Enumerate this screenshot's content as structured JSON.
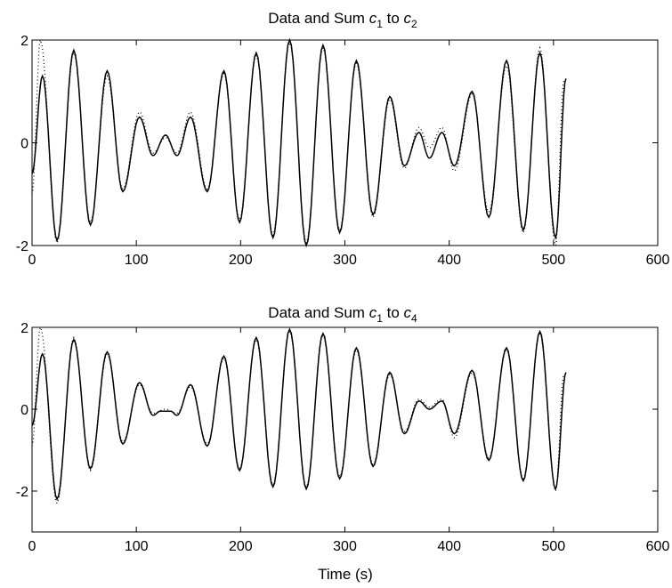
{
  "figure": {
    "xlabel": "Time (s)"
  },
  "chart_data": [
    {
      "type": "line",
      "title": {
        "prefix": "Data and Sum ",
        "c1": "c",
        "c1_sub": "1",
        "mid": " to ",
        "c2": "c",
        "c2_sub": "2"
      },
      "xlim": [
        0,
        600
      ],
      "ylim": [
        -2,
        2
      ],
      "x_ticks": [
        0,
        100,
        200,
        300,
        400,
        500,
        600
      ],
      "y_ticks": [
        -2,
        0,
        2
      ],
      "x_tick_labels": [
        "0",
        "100",
        "200",
        "300",
        "400",
        "500",
        "600"
      ],
      "y_tick_labels": [
        "-2",
        "0",
        "2"
      ],
      "grid": false,
      "series": [
        {
          "style": "solid",
          "color": "#000000",
          "extrema": [
            [
              0,
              -0.6
            ],
            [
              10,
              1.3
            ],
            [
              24,
              -1.9
            ],
            [
              40,
              1.8
            ],
            [
              56,
              -1.6
            ],
            [
              72,
              1.4
            ],
            [
              87,
              -0.95
            ],
            [
              103,
              0.5
            ],
            [
              116,
              -0.25
            ],
            [
              128,
              0.15
            ],
            [
              139,
              -0.25
            ],
            [
              152,
              0.5
            ],
            [
              168,
              -0.95
            ],
            [
              184,
              1.4
            ],
            [
              199,
              -1.55
            ],
            [
              215,
              1.75
            ],
            [
              231,
              -1.85
            ],
            [
              247,
              2.0
            ],
            [
              263,
              -2.0
            ],
            [
              279,
              1.9
            ],
            [
              295,
              -1.75
            ],
            [
              311,
              1.6
            ],
            [
              327,
              -1.4
            ],
            [
              343,
              0.9
            ],
            [
              357,
              -0.45
            ],
            [
              371,
              0.2
            ],
            [
              381,
              -0.3
            ],
            [
              393,
              0.2
            ],
            [
              405,
              -0.45
            ],
            [
              422,
              1.0
            ],
            [
              438,
              -1.45
            ],
            [
              455,
              1.6
            ],
            [
              471,
              -1.7
            ],
            [
              487,
              1.75
            ],
            [
              502,
              -1.85
            ],
            [
              512,
              1.25
            ]
          ]
        },
        {
          "style": "dotted",
          "color": "#000000",
          "extrema": [
            [
              0,
              -1.0
            ],
            [
              8,
              2.0
            ],
            [
              24,
              -1.95
            ],
            [
              40,
              1.75
            ],
            [
              56,
              -1.55
            ],
            [
              72,
              1.3
            ],
            [
              87,
              -0.9
            ],
            [
              103,
              0.6
            ],
            [
              116,
              -0.2
            ],
            [
              128,
              0.1
            ],
            [
              139,
              -0.2
            ],
            [
              152,
              0.6
            ],
            [
              168,
              -0.9
            ],
            [
              184,
              1.35
            ],
            [
              199,
              -1.5
            ],
            [
              215,
              1.7
            ],
            [
              231,
              -1.8
            ],
            [
              247,
              1.95
            ],
            [
              263,
              -1.95
            ],
            [
              279,
              1.85
            ],
            [
              295,
              -1.7
            ],
            [
              311,
              1.55
            ],
            [
              327,
              -1.45
            ],
            [
              343,
              0.85
            ],
            [
              357,
              -0.5
            ],
            [
              371,
              0.3
            ],
            [
              381,
              -0.1
            ],
            [
              393,
              0.3
            ],
            [
              405,
              -0.55
            ],
            [
              422,
              0.95
            ],
            [
              438,
              -1.35
            ],
            [
              455,
              1.5
            ],
            [
              471,
              -1.75
            ],
            [
              487,
              1.85
            ],
            [
              502,
              -2.0
            ],
            [
              510,
              1.2
            ]
          ]
        }
      ]
    },
    {
      "type": "line",
      "title": {
        "prefix": "Data and Sum ",
        "c1": "c",
        "c1_sub": "1",
        "mid": " to ",
        "c2": "c",
        "c2_sub": "4"
      },
      "xlim": [
        0,
        600
      ],
      "ylim": [
        -3,
        2
      ],
      "x_ticks": [
        0,
        100,
        200,
        300,
        400,
        500,
        600
      ],
      "y_ticks": [
        -2,
        0,
        2
      ],
      "x_tick_labels": [
        "0",
        "100",
        "200",
        "300",
        "400",
        "500",
        "600"
      ],
      "y_tick_labels": [
        "-2",
        "0",
        "2"
      ],
      "grid": false,
      "series": [
        {
          "style": "solid",
          "color": "#000000",
          "extrema": [
            [
              0,
              -0.4
            ],
            [
              10,
              1.35
            ],
            [
              24,
              -2.2
            ],
            [
              40,
              1.7
            ],
            [
              56,
              -1.45
            ],
            [
              72,
              1.4
            ],
            [
              87,
              -0.85
            ],
            [
              103,
              0.65
            ],
            [
              116,
              -0.15
            ],
            [
              123,
              -0.05
            ],
            [
              128,
              -0.05
            ],
            [
              133,
              -0.05
            ],
            [
              139,
              -0.15
            ],
            [
              152,
              0.6
            ],
            [
              168,
              -0.9
            ],
            [
              184,
              1.3
            ],
            [
              199,
              -1.5
            ],
            [
              215,
              1.75
            ],
            [
              231,
              -1.9
            ],
            [
              247,
              1.95
            ],
            [
              263,
              -1.95
            ],
            [
              279,
              1.85
            ],
            [
              295,
              -1.7
            ],
            [
              311,
              1.5
            ],
            [
              327,
              -1.4
            ],
            [
              343,
              0.9
            ],
            [
              357,
              -0.6
            ],
            [
              371,
              0.2
            ],
            [
              381,
              0.0
            ],
            [
              393,
              0.2
            ],
            [
              405,
              -0.6
            ],
            [
              422,
              0.95
            ],
            [
              438,
              -1.25
            ],
            [
              455,
              1.5
            ],
            [
              471,
              -1.75
            ],
            [
              487,
              1.9
            ],
            [
              502,
              -1.95
            ],
            [
              512,
              0.9
            ]
          ]
        },
        {
          "style": "dotted",
          "color": "#000000",
          "extrema": [
            [
              0,
              -0.9
            ],
            [
              8,
              2.0
            ],
            [
              24,
              -2.3
            ],
            [
              40,
              1.75
            ],
            [
              56,
              -1.5
            ],
            [
              72,
              1.35
            ],
            [
              87,
              -0.8
            ],
            [
              103,
              0.6
            ],
            [
              116,
              -0.1
            ],
            [
              128,
              0.0
            ],
            [
              139,
              -0.1
            ],
            [
              152,
              0.55
            ],
            [
              168,
              -0.85
            ],
            [
              184,
              1.25
            ],
            [
              199,
              -1.45
            ],
            [
              215,
              1.7
            ],
            [
              231,
              -1.85
            ],
            [
              247,
              1.9
            ],
            [
              263,
              -1.9
            ],
            [
              279,
              1.8
            ],
            [
              295,
              -1.65
            ],
            [
              311,
              1.45
            ],
            [
              327,
              -1.35
            ],
            [
              343,
              0.85
            ],
            [
              357,
              -0.55
            ],
            [
              371,
              0.25
            ],
            [
              381,
              0.05
            ],
            [
              393,
              0.25
            ],
            [
              405,
              -0.7
            ],
            [
              422,
              0.9
            ],
            [
              438,
              -1.2
            ],
            [
              455,
              1.45
            ],
            [
              471,
              -1.7
            ],
            [
              487,
              1.85
            ],
            [
              502,
              -2.0
            ],
            [
              510,
              0.85
            ]
          ]
        }
      ]
    }
  ]
}
